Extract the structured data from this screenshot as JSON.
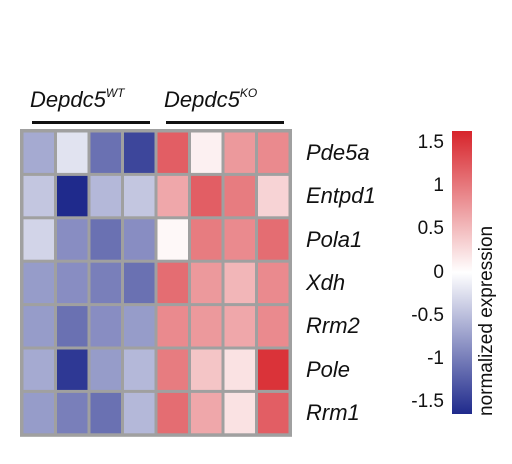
{
  "chart_data": {
    "type": "heatmap",
    "groups": [
      {
        "base": "Depdc5",
        "sup": "WT",
        "columns": 4
      },
      {
        "base": "Depdc5",
        "sup": "KO",
        "columns": 4
      }
    ],
    "rows": [
      "Pde5a",
      "Entpd1",
      "Pola1",
      "Xdh",
      "Rrm2",
      "Pole",
      "Rrm1"
    ],
    "values": [
      [
        -0.6,
        -0.2,
        -1.0,
        -1.3,
        1.1,
        0.1,
        0.7,
        0.8
      ],
      [
        -0.4,
        -1.5,
        -0.5,
        -0.4,
        0.6,
        1.1,
        0.9,
        0.3
      ],
      [
        -0.3,
        -0.8,
        -1.0,
        -0.8,
        0.05,
        0.9,
        0.8,
        1.0
      ],
      [
        -0.7,
        -0.8,
        -0.9,
        -1.0,
        1.0,
        0.7,
        0.5,
        0.8
      ],
      [
        -0.7,
        -1.0,
        -0.8,
        -0.7,
        0.8,
        0.7,
        0.6,
        0.8
      ],
      [
        -0.6,
        -1.4,
        -0.7,
        -0.5,
        0.9,
        0.4,
        0.2,
        1.4
      ],
      [
        -0.7,
        -0.9,
        -1.0,
        -0.5,
        1.0,
        0.6,
        0.2,
        1.1
      ]
    ],
    "colorbar": {
      "title": "normalized expression",
      "ticks": [
        "1.5",
        "1",
        "0.5",
        "0",
        "-0.5",
        "-1",
        "-1.5"
      ],
      "range": [
        -1.5,
        1.5
      ],
      "colors": {
        "low": "#1f2a8c",
        "mid": "#ffffff",
        "high": "#d7242b"
      }
    },
    "grid_color": "#a0a0a0"
  }
}
